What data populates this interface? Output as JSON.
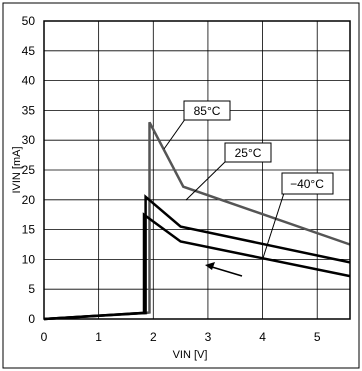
{
  "chart_data": {
    "type": "line",
    "title": "",
    "xlabel": "VIN [V]",
    "ylabel": "IVIN [mA]",
    "xlim": [
      0,
      5.6
    ],
    "ylim": [
      0,
      50
    ],
    "xticks": [
      0,
      1,
      2,
      3,
      4,
      5
    ],
    "yticks": [
      0,
      5,
      10,
      15,
      20,
      25,
      30,
      35,
      40,
      45,
      50
    ],
    "grid": true,
    "series": [
      {
        "name": "85°C",
        "color": "#555555",
        "x": [
          0,
          1.87,
          1.93,
          1.93,
          2.55,
          5.6
        ],
        "y": [
          0,
          1.0,
          1.1,
          33.0,
          22.2,
          12.5
        ]
      },
      {
        "name": "25°C",
        "color": "#000000",
        "x": [
          0,
          1.8,
          1.86,
          1.86,
          2.5,
          5.6
        ],
        "y": [
          0,
          1.0,
          1.0,
          20.5,
          15.5,
          9.5
        ]
      },
      {
        "name": "−40°C",
        "color": "#000000",
        "x": [
          0,
          1.8,
          1.83,
          1.83,
          2.5,
          5.6
        ],
        "y": [
          0,
          1.0,
          1.0,
          17.5,
          13.0,
          7.2
        ]
      }
    ]
  }
}
